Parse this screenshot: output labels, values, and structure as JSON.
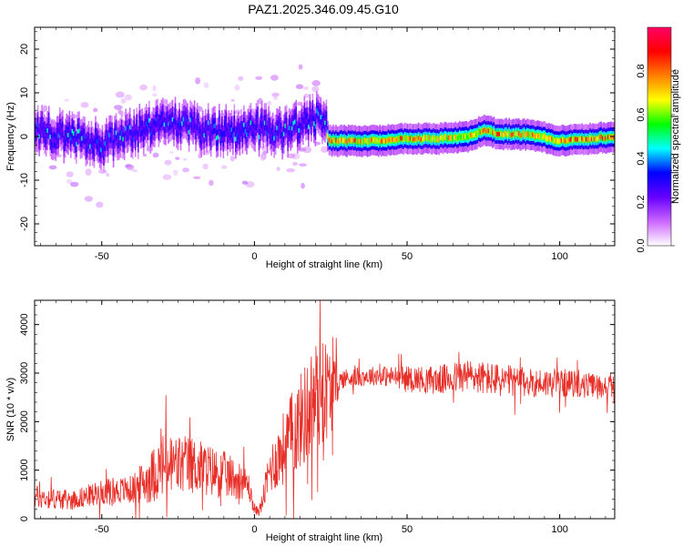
{
  "title": "PAZ1.2025.346.09.45.G10",
  "chart_data": [
    {
      "type": "heatmap",
      "name": "spectrogram",
      "xlabel": "Height of straight line (km)",
      "ylabel": "Frequency (Hz)",
      "xlim": [
        -72,
        118
      ],
      "ylim": [
        -25,
        25
      ],
      "x_ticks": [
        -50,
        0,
        50,
        100
      ],
      "y_ticks": [
        -20,
        -10,
        0,
        10,
        20
      ],
      "colorbar": {
        "label": "Normalized spectral amplitude",
        "range": [
          0,
          1
        ],
        "ticks": [
          "0.0",
          "0.2",
          "0.4",
          "0.6",
          "0.8"
        ],
        "tick_values": [
          0.0,
          0.2,
          0.4,
          0.6,
          0.8
        ],
        "colormap": [
          "#ffffff",
          "#cc66ff",
          "#6600ff",
          "#0000ff",
          "#00ffff",
          "#00ff00",
          "#ffff00",
          "#ff8000",
          "#ff0000",
          "#ff0066"
        ]
      },
      "ridge": {
        "description_points_x": [
          -72,
          -60,
          -50,
          -40,
          -30,
          -20,
          -10,
          0,
          10,
          20,
          23,
          24,
          30,
          40,
          50,
          60,
          70,
          75,
          80,
          90,
          100,
          110,
          118
        ],
        "frequency_hz": [
          1,
          0,
          -2,
          1,
          3,
          2,
          1,
          2,
          1,
          4,
          5,
          -1,
          -1,
          -1,
          -0.5,
          -0.5,
          0,
          1.5,
          0.5,
          0.5,
          -1,
          -0.5,
          0
        ],
        "peak_amplitude": [
          0.35,
          0.3,
          0.35,
          0.3,
          0.3,
          0.35,
          0.3,
          0.3,
          0.3,
          0.4,
          0.4,
          0.8,
          0.85,
          0.8,
          0.85,
          0.8,
          0.75,
          0.8,
          0.85,
          0.8,
          0.85,
          0.9,
          0.8
        ]
      }
    },
    {
      "type": "line",
      "name": "snr",
      "xlabel": "Height of straight line (km)",
      "ylabel": "SNR (10 * v/v)",
      "xlim": [
        -72,
        118
      ],
      "ylim": [
        0,
        4500
      ],
      "x_ticks": [
        -50,
        0,
        50,
        100
      ],
      "y_ticks": [
        0,
        1000,
        2000,
        3000,
        4000
      ],
      "color": "#e8302a",
      "envelope": {
        "x": [
          -72,
          -60,
          -50,
          -40,
          -35,
          -30,
          -20,
          -10,
          -5,
          -2,
          0,
          2,
          5,
          10,
          15,
          20,
          22,
          25,
          28,
          30,
          40,
          50,
          60,
          70,
          80,
          90,
          100,
          110,
          118
        ],
        "mean": [
          450,
          380,
          550,
          600,
          800,
          1100,
          1100,
          900,
          800,
          700,
          150,
          200,
          1000,
          1500,
          2000,
          2500,
          2700,
          2600,
          2850,
          2900,
          2950,
          2900,
          2850,
          2950,
          2850,
          2800,
          2800,
          2750,
          2700
        ],
        "noise": [
          250,
          200,
          250,
          300,
          500,
          700,
          600,
          500,
          400,
          300,
          80,
          150,
          500,
          800,
          1000,
          1200,
          1200,
          900,
          200,
          200,
          200,
          250,
          300,
          350,
          350,
          300,
          300,
          250,
          250
        ]
      }
    }
  ]
}
